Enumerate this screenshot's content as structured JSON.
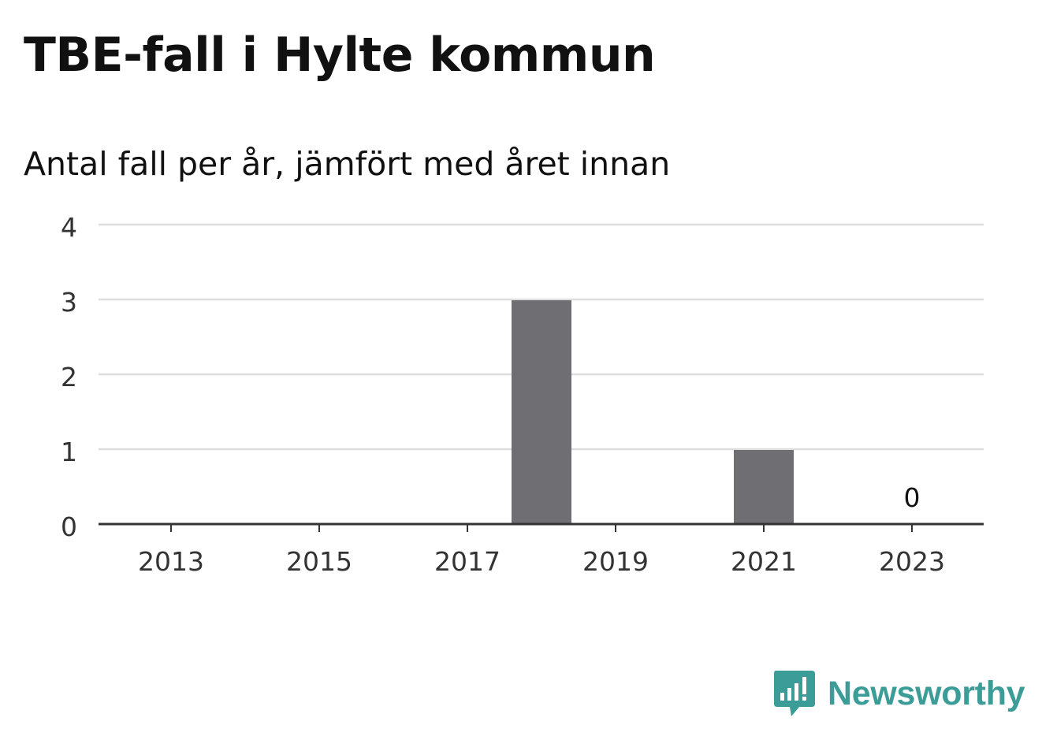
{
  "header": {
    "title": "TBE-fall i Hylte kommun",
    "subtitle": "Antal fall per år, jämfört med året innan"
  },
  "brand": {
    "name": "Newsworthy",
    "icon": "newsworthy-logo-icon",
    "color": "#3c9d98"
  },
  "chart_data": {
    "type": "bar",
    "categories": [
      "2013",
      "2014",
      "2015",
      "2016",
      "2017",
      "2018",
      "2019",
      "2020",
      "2021",
      "2022",
      "2023"
    ],
    "values": [
      0,
      0,
      0,
      0,
      0,
      3,
      0,
      0,
      1,
      0,
      0
    ],
    "x_tick_labels": [
      "2013",
      "2015",
      "2017",
      "2019",
      "2021",
      "2023"
    ],
    "y_ticks": [
      0,
      1,
      2,
      3,
      4
    ],
    "ylim": [
      0,
      4
    ],
    "grid": true,
    "annotations": [
      {
        "category": "2023",
        "text": "0"
      }
    ],
    "bar_color": "#6f6e73",
    "gridline_color": "#dddddd",
    "axis_color": "#333333"
  }
}
